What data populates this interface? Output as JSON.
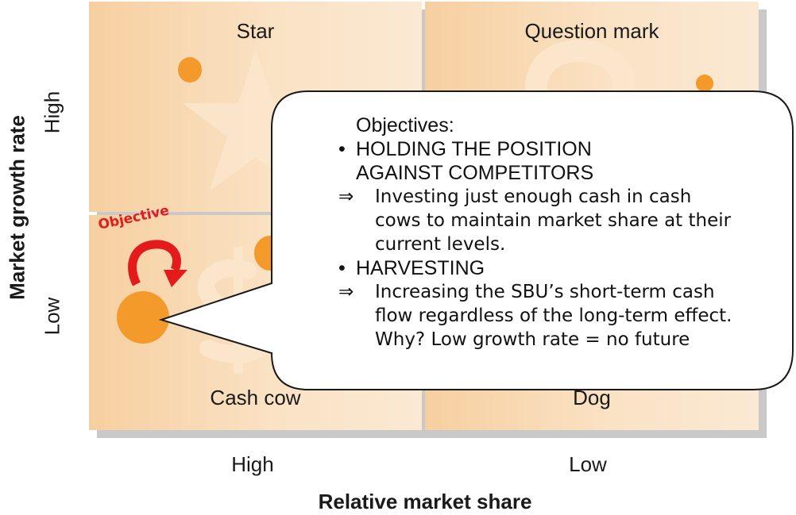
{
  "quadrants": {
    "star": "Star",
    "question_mark": "Question mark",
    "cash_cow": "Cash cow",
    "dog": "Dog"
  },
  "axes": {
    "y_title": "Market growth rate",
    "y_high": "High",
    "y_low": "Low",
    "x_title": "Relative market share",
    "x_high": "High",
    "x_low": "Low"
  },
  "objective_label": "Objective",
  "callout": {
    "heading": "Objectives:",
    "bullet": "•",
    "arrow": "⇒",
    "item1_line1": "HOLDING THE POSITION",
    "item1_line2": "AGAINST COMPETITORS",
    "item1_detail_line1": "Investing just enough cash in cash",
    "item1_detail_line2": "cows to maintain market share at their",
    "item1_detail_line3": "current levels.",
    "item2_line1": "HARVESTING",
    "item2_detail_line1": "Increasing the SBU’s short-term cash",
    "item2_detail_line2": "flow regardless of the long-term effect.",
    "item2_detail_line3": "Why? Low growth rate = no future"
  },
  "colors": {
    "bubble": "#f39a2a",
    "objective_red": "#e31b1b",
    "quadrant_fill": "#f8d9b4"
  }
}
